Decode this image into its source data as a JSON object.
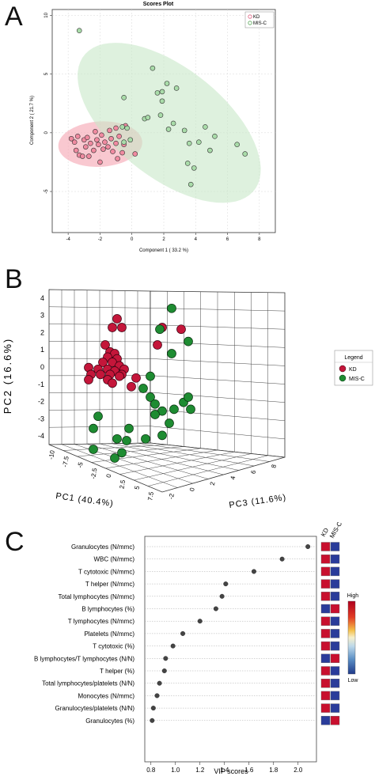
{
  "figure": {
    "panel_labels": [
      "A",
      "B",
      "C"
    ]
  },
  "chart_data": [
    {
      "type": "scatter",
      "title": "Scores Plot",
      "xlabel": "Component 1 ( 33.2 %)",
      "ylabel": "Component 2 ( 21.7 %)",
      "xlim": [
        -5,
        9
      ],
      "ylim": [
        -8.5,
        10.5
      ],
      "xticks": [
        -4,
        -2,
        0,
        2,
        4,
        6,
        8
      ],
      "yticks": [
        -5,
        0,
        5,
        10
      ],
      "grid": true,
      "legend_position": "top-right",
      "series": [
        {
          "name": "KD",
          "color": "#f08aa0",
          "ellipse_color": "#f5a3b1",
          "points": [
            [
              -3.8,
              -0.5
            ],
            [
              -3.6,
              -0.8
            ],
            [
              -3.5,
              -1.5
            ],
            [
              -3.4,
              -0.3
            ],
            [
              -3.3,
              -1.9
            ],
            [
              -3.1,
              -2.0
            ],
            [
              -3.0,
              -0.6
            ],
            [
              -2.9,
              -1.2
            ],
            [
              -2.8,
              -0.4
            ],
            [
              -2.7,
              -2.0
            ],
            [
              -2.6,
              -0.9
            ],
            [
              -2.4,
              -1.5
            ],
            [
              -2.3,
              0.1
            ],
            [
              -2.2,
              -0.6
            ],
            [
              -2.1,
              -1.0
            ],
            [
              -2.0,
              -2.5
            ],
            [
              -1.9,
              -0.2
            ],
            [
              -1.8,
              -1.4
            ],
            [
              -1.7,
              -0.8
            ],
            [
              -1.5,
              -1.2
            ],
            [
              -1.4,
              0.2
            ],
            [
              -1.3,
              -0.5
            ],
            [
              -1.2,
              -1.6
            ],
            [
              -1.0,
              0.4
            ],
            [
              -1.0,
              -0.9
            ],
            [
              -0.9,
              -2.2
            ],
            [
              -0.8,
              -0.3
            ],
            [
              -0.6,
              -1.7
            ],
            [
              -0.5,
              -1.0
            ],
            [
              -0.4,
              0.6
            ],
            [
              0.2,
              -1.8
            ]
          ]
        },
        {
          "name": "MIS-C",
          "color": "#a9dca9",
          "ellipse_color": "#c8e8c8",
          "points": [
            [
              -3.3,
              8.7
            ],
            [
              -0.6,
              0.5
            ],
            [
              -0.5,
              -0.8
            ],
            [
              -0.3,
              0.4
            ],
            [
              -0.1,
              -0.6
            ],
            [
              -0.5,
              3.0
            ],
            [
              0.8,
              1.2
            ],
            [
              1.3,
              5.5
            ],
            [
              1.0,
              1.3
            ],
            [
              1.6,
              3.4
            ],
            [
              1.8,
              1.5
            ],
            [
              1.9,
              3.5
            ],
            [
              1.9,
              2.7
            ],
            [
              2.2,
              4.2
            ],
            [
              2.3,
              0.3
            ],
            [
              2.6,
              0.8
            ],
            [
              2.8,
              3.8
            ],
            [
              3.3,
              0.2
            ],
            [
              3.5,
              -2.6
            ],
            [
              3.6,
              -0.9
            ],
            [
              3.7,
              -4.4
            ],
            [
              3.9,
              -3.0
            ],
            [
              4.2,
              -0.8
            ],
            [
              4.6,
              0.5
            ],
            [
              4.9,
              -1.5
            ],
            [
              5.2,
              -0.3
            ],
            [
              6.6,
              -1.0
            ],
            [
              7.1,
              -1.8
            ]
          ]
        }
      ]
    },
    {
      "type": "scatter",
      "xlabel": "PC1 (40.4%)",
      "ylabel": "PC2 (16.6%)",
      "zlabel": "PC3 (11.6%)",
      "yticks": [
        4,
        3,
        2,
        1,
        0,
        -1,
        -2,
        -3,
        -4
      ],
      "xticks": [
        "-10",
        "-7.5",
        "-5",
        "-2.5",
        "0",
        "2.5",
        "5",
        "7.5"
      ],
      "zticks": [
        "-2",
        "0",
        "2",
        "4",
        "6",
        "8"
      ],
      "legend_title": "Legend",
      "legend_position": "right",
      "series": [
        {
          "name": "KD",
          "color": "#c4163a",
          "points": [
            [
              0.6,
              3.5
            ],
            [
              0.4,
              3.0
            ],
            [
              0.8,
              3.0
            ],
            [
              0.1,
              2.0
            ],
            [
              0.3,
              1.6
            ],
            [
              0.5,
              1.5
            ],
            [
              0.2,
              1.3
            ],
            [
              0.6,
              1.2
            ],
            [
              0.0,
              1.0
            ],
            [
              0.4,
              1.0
            ],
            [
              0.7,
              0.8
            ],
            [
              0.2,
              0.6
            ],
            [
              -0.2,
              0.6
            ],
            [
              0.5,
              0.5
            ],
            [
              0.9,
              0.6
            ],
            [
              -0.1,
              0.3
            ],
            [
              0.3,
              0.3
            ],
            [
              0.8,
              0.3
            ],
            [
              -0.6,
              0.7
            ],
            [
              -0.5,
              0.3
            ],
            [
              -0.6,
              0.0
            ],
            [
              0.2,
              0.0
            ],
            [
              0.7,
              0.2
            ],
            [
              1.4,
              0.1
            ],
            [
              0.4,
              -0.2
            ],
            [
              1.2,
              -0.4
            ],
            [
              2.3,
              2.0
            ],
            [
              2.5,
              3.0
            ],
            [
              3.3,
              2.9
            ]
          ]
        },
        {
          "name": "MIS-C",
          "color": "#1e8c32",
          "points": [
            [
              2.9,
              4.1
            ],
            [
              2.4,
              2.9
            ],
            [
              2.9,
              1.5
            ],
            [
              3.6,
              2.2
            ],
            [
              2.0,
              0.2
            ],
            [
              1.7,
              -0.5
            ],
            [
              2.0,
              -1.0
            ],
            [
              2.2,
              -1.4
            ],
            [
              2.5,
              -1.8
            ],
            [
              2.2,
              -2.0
            ],
            [
              3.0,
              -1.7
            ],
            [
              3.4,
              -1.3
            ],
            [
              3.6,
              -1.0
            ],
            [
              3.7,
              -1.7
            ],
            [
              2.8,
              -2.5
            ],
            [
              2.5,
              -3.2
            ],
            [
              1.8,
              -3.4
            ],
            [
              1.1,
              -2.8
            ],
            [
              1.0,
              -3.5
            ],
            [
              0.6,
              -3.4
            ],
            [
              0.8,
              -4.2
            ],
            [
              0.5,
              -4.5
            ],
            [
              -0.2,
              -2.1
            ],
            [
              -0.4,
              -2.8
            ],
            [
              -0.4,
              -4.0
            ]
          ]
        }
      ]
    },
    {
      "type": "dot",
      "xlabel": "VIP scores",
      "xlim": [
        0.75,
        2.15
      ],
      "xticks": [
        0.8,
        1.0,
        1.2,
        1.4,
        1.6,
        1.8,
        2.0
      ],
      "heatmap_columns": [
        "KD",
        "MIS-C"
      ],
      "colorbar_labels": {
        "high": "High",
        "low": "Low"
      },
      "colors": {
        "high": "#c8102e",
        "low": "#2a3c9a"
      },
      "rows": [
        {
          "label": "Granulocytes (N/mmc)",
          "vip": 2.08,
          "kd": "high",
          "misc": "low"
        },
        {
          "label": "WBC (N/mmc)",
          "vip": 1.87,
          "kd": "high",
          "misc": "low"
        },
        {
          "label": "T cytotoxic (N/mmc)",
          "vip": 1.64,
          "kd": "high",
          "misc": "low"
        },
        {
          "label": "T helper (N/mmc)",
          "vip": 1.41,
          "kd": "high",
          "misc": "low"
        },
        {
          "label": "Total lymphocytes (N/mmc)",
          "vip": 1.38,
          "kd": "high",
          "misc": "low"
        },
        {
          "label": "B lymphocytes (%)",
          "vip": 1.33,
          "kd": "low",
          "misc": "high"
        },
        {
          "label": "T lymphocytes (N/mmc)",
          "vip": 1.2,
          "kd": "high",
          "misc": "low"
        },
        {
          "label": "Platelets (N/mmc)",
          "vip": 1.06,
          "kd": "high",
          "misc": "low"
        },
        {
          "label": "T cytotoxic (%)",
          "vip": 0.98,
          "kd": "high",
          "misc": "low"
        },
        {
          "label": "B lymphocytes/T lymphocytes (N/N)",
          "vip": 0.92,
          "kd": "low",
          "misc": "high"
        },
        {
          "label": "T helper (%)",
          "vip": 0.91,
          "kd": "high",
          "misc": "low"
        },
        {
          "label": "Total lymphocytes/platelets (N/N)",
          "vip": 0.87,
          "kd": "high",
          "misc": "low"
        },
        {
          "label": "Monocytes (N/mmc)",
          "vip": 0.85,
          "kd": "high",
          "misc": "low"
        },
        {
          "label": "Granulocytes/platelets (N/N)",
          "vip": 0.82,
          "kd": "high",
          "misc": "low"
        },
        {
          "label": "Granulocytes (%)",
          "vip": 0.81,
          "kd": "low",
          "misc": "high"
        }
      ]
    }
  ]
}
